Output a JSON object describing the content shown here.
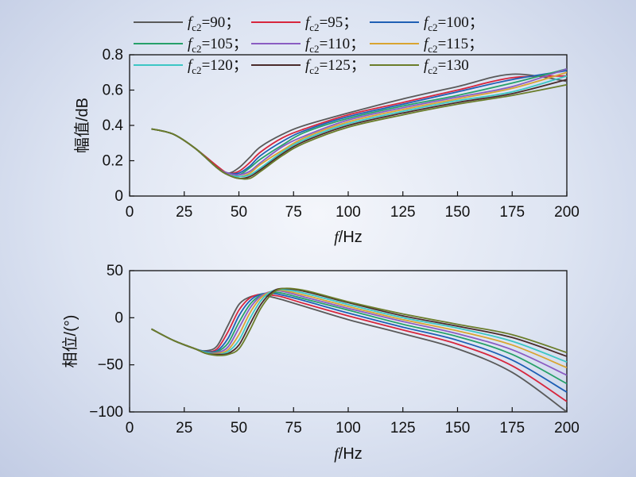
{
  "legend": {
    "items": [
      {
        "var": "f",
        "sub": "c2",
        "text": "=90；",
        "color": "#5a5a5a"
      },
      {
        "var": "f",
        "sub": "c2",
        "text": "=95；",
        "color": "#d7263d"
      },
      {
        "var": "f",
        "sub": "c2",
        "text": "=100；",
        "color": "#1f5fb4"
      },
      {
        "var": "f",
        "sub": "c2",
        "text": "=105；",
        "color": "#27a06a"
      },
      {
        "var": "f",
        "sub": "c2",
        "text": "=110；",
        "color": "#8a5cc2"
      },
      {
        "var": "f",
        "sub": "c2",
        "text": "=115；",
        "color": "#d9a431"
      },
      {
        "var": "f",
        "sub": "c2",
        "text": "=120；",
        "color": "#3cc6c4"
      },
      {
        "var": "f",
        "sub": "c2",
        "text": "=125；",
        "color": "#4a2b2b"
      },
      {
        "var": "f",
        "sub": "c2",
        "text": "=130",
        "color": "#6b7d2a"
      }
    ]
  },
  "chart_data": [
    {
      "type": "line",
      "ylabel": "幅值/dB",
      "xlabel_var": "f",
      "xlabel_unit": "/Hz",
      "xlim": [
        0,
        200
      ],
      "ylim": [
        0,
        0.8
      ],
      "xticks": [
        "0",
        "25",
        "50",
        "75",
        "100",
        "125",
        "150",
        "175",
        "200"
      ],
      "yticks": [
        "0",
        "0.2",
        "0.4",
        "0.6",
        "0.8"
      ],
      "x": [
        10,
        20,
        30,
        40,
        45,
        50,
        55,
        60,
        70,
        80,
        100,
        125,
        150,
        175,
        200
      ],
      "series": [
        {
          "name": "fc2=90",
          "values": [
            0.38,
            0.35,
            0.27,
            0.17,
            0.13,
            0.16,
            0.22,
            0.28,
            0.35,
            0.4,
            0.47,
            0.55,
            0.62,
            0.69,
            0.65
          ]
        },
        {
          "name": "fc2=95",
          "values": [
            0.38,
            0.35,
            0.27,
            0.17,
            0.13,
            0.14,
            0.19,
            0.25,
            0.33,
            0.38,
            0.46,
            0.53,
            0.6,
            0.67,
            0.68
          ]
        },
        {
          "name": "fc2=100",
          "values": [
            0.38,
            0.35,
            0.27,
            0.16,
            0.13,
            0.13,
            0.17,
            0.23,
            0.31,
            0.37,
            0.45,
            0.52,
            0.59,
            0.66,
            0.71
          ]
        },
        {
          "name": "fc2=105",
          "values": [
            0.38,
            0.35,
            0.27,
            0.16,
            0.13,
            0.12,
            0.16,
            0.21,
            0.29,
            0.36,
            0.44,
            0.51,
            0.57,
            0.64,
            0.72
          ]
        },
        {
          "name": "fc2=110",
          "values": [
            0.38,
            0.35,
            0.27,
            0.16,
            0.13,
            0.12,
            0.14,
            0.19,
            0.28,
            0.34,
            0.43,
            0.5,
            0.56,
            0.62,
            0.72
          ]
        },
        {
          "name": "fc2=115",
          "values": [
            0.38,
            0.35,
            0.27,
            0.16,
            0.12,
            0.11,
            0.13,
            0.18,
            0.26,
            0.33,
            0.42,
            0.49,
            0.55,
            0.61,
            0.7
          ]
        },
        {
          "name": "fc2=120",
          "values": [
            0.38,
            0.35,
            0.27,
            0.16,
            0.12,
            0.11,
            0.12,
            0.16,
            0.25,
            0.32,
            0.41,
            0.48,
            0.54,
            0.59,
            0.68
          ]
        },
        {
          "name": "fc2=125",
          "values": [
            0.38,
            0.35,
            0.27,
            0.16,
            0.12,
            0.1,
            0.11,
            0.15,
            0.24,
            0.31,
            0.4,
            0.47,
            0.53,
            0.58,
            0.66
          ]
        },
        {
          "name": "fc2=130",
          "values": [
            0.38,
            0.35,
            0.27,
            0.16,
            0.12,
            0.1,
            0.1,
            0.14,
            0.23,
            0.3,
            0.39,
            0.46,
            0.52,
            0.57,
            0.63
          ]
        }
      ]
    },
    {
      "type": "line",
      "ylabel": "相位/(°)",
      "xlabel_var": "f",
      "xlabel_unit": "/Hz",
      "xlim": [
        0,
        200
      ],
      "ylim": [
        -100,
        50
      ],
      "xticks": [
        "0",
        "25",
        "50",
        "75",
        "100",
        "125",
        "150",
        "175",
        "200"
      ],
      "yticks": [
        "50",
        "0",
        "−50",
        "−100"
      ],
      "x": [
        10,
        20,
        30,
        35,
        40,
        45,
        50,
        55,
        60,
        65,
        70,
        80,
        100,
        125,
        150,
        175,
        200
      ],
      "series": [
        {
          "name": "fc2=90",
          "values": [
            -12,
            -24,
            -33,
            -35,
            -30,
            -8,
            14,
            22,
            24,
            22,
            19,
            12,
            -2,
            -17,
            -33,
            -58,
            -100
          ]
        },
        {
          "name": "fc2=95",
          "values": [
            -12,
            -24,
            -33,
            -36,
            -33,
            -15,
            8,
            21,
            25,
            24,
            22,
            15,
            2,
            -13,
            -28,
            -51,
            -89
          ]
        },
        {
          "name": "fc2=100",
          "values": [
            -12,
            -24,
            -33,
            -36,
            -35,
            -22,
            2,
            18,
            25,
            26,
            24,
            18,
            5,
            -10,
            -24,
            -45,
            -79
          ]
        },
        {
          "name": "fc2=105",
          "values": [
            -12,
            -24,
            -33,
            -37,
            -36,
            -27,
            -5,
            14,
            24,
            27,
            26,
            20,
            8,
            -7,
            -20,
            -39,
            -70
          ]
        },
        {
          "name": "fc2=110",
          "values": [
            -12,
            -24,
            -33,
            -37,
            -37,
            -31,
            -11,
            10,
            23,
            28,
            28,
            22,
            10,
            -4,
            -17,
            -34,
            -61
          ]
        },
        {
          "name": "fc2=115",
          "values": [
            -12,
            -24,
            -33,
            -37,
            -38,
            -34,
            -18,
            5,
            21,
            28,
            29,
            24,
            12,
            -2,
            -14,
            -29,
            -53
          ]
        },
        {
          "name": "fc2=120",
          "values": [
            -12,
            -24,
            -33,
            -37,
            -39,
            -36,
            -24,
            -1,
            18,
            28,
            30,
            26,
            14,
            0,
            -11,
            -25,
            -47
          ]
        },
        {
          "name": "fc2=125",
          "values": [
            -12,
            -24,
            -33,
            -38,
            -39,
            -38,
            -29,
            -7,
            14,
            27,
            31,
            28,
            16,
            2,
            -9,
            -21,
            -41
          ]
        },
        {
          "name": "fc2=130",
          "values": [
            -12,
            -24,
            -33,
            -38,
            -40,
            -39,
            -33,
            -13,
            10,
            25,
            31,
            29,
            17,
            4,
            -7,
            -18,
            -37
          ]
        }
      ]
    }
  ]
}
